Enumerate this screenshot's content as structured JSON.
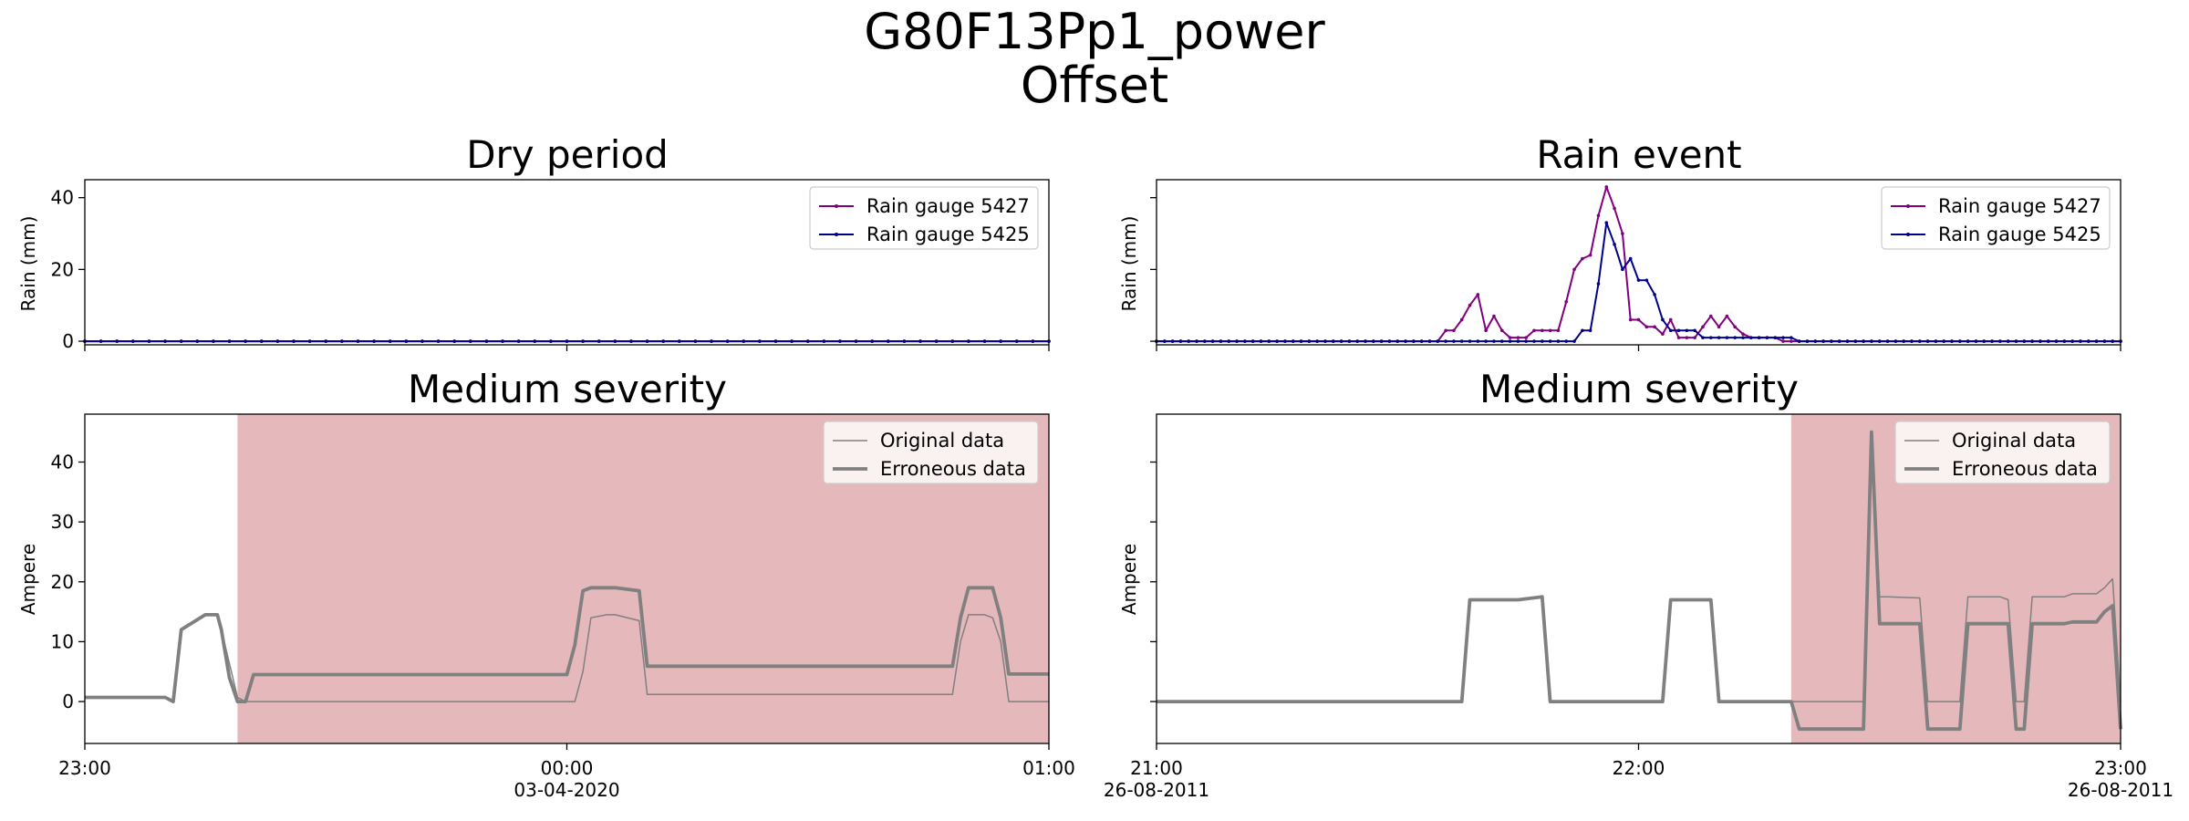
{
  "figure": {
    "title_line1": "G80F13Pp1_power",
    "title_line2": "Offset"
  },
  "panels": {
    "tl": {
      "title": "Dry period",
      "ylabel": "Rain (mm)"
    },
    "tr": {
      "title": "Rain event",
      "ylabel": "Rain (mm)"
    },
    "bl": {
      "title": "Medium severity",
      "ylabel": "Ampere"
    },
    "br": {
      "title": "Medium severity",
      "ylabel": "Ampere"
    }
  },
  "legends": {
    "rain": [
      "Rain gauge 5427",
      "Rain gauge 5425"
    ],
    "current": [
      "Original data",
      "Erroneous data"
    ]
  },
  "x_ticks": {
    "left": [
      {
        "line1": "23:00",
        "line2": ""
      },
      {
        "line1": "00:00",
        "line2": "03-04-2020"
      },
      {
        "line1": "01:00",
        "line2": ""
      }
    ],
    "right": [
      {
        "line1": "21:00",
        "line2": "26-08-2011"
      },
      {
        "line1": "22:00",
        "line2": ""
      },
      {
        "line1": "23:00",
        "line2": "26-08-2011"
      }
    ]
  },
  "colors": {
    "gauge_5427": "#800080",
    "gauge_5425": "#00008b",
    "current": "#808080",
    "error_span": "#e5b9bb",
    "axis": "#000000"
  },
  "chart_data": [
    {
      "id": "tl",
      "type": "line",
      "title": "Dry period",
      "ylabel": "Rain (mm)",
      "xlim_minutes": [
        0,
        120
      ],
      "ylim": [
        -1,
        45
      ],
      "yticks": [
        0,
        20,
        40
      ],
      "x_tick_labels": [
        "23:00",
        "00:00\n03-04-2020",
        "01:00"
      ],
      "grid": false,
      "legend": "top-right",
      "series": [
        {
          "name": "Rain gauge 5427",
          "x_step_minutes": 2,
          "constant_value": 0,
          "count": 61
        },
        {
          "name": "Rain gauge 5425",
          "x_step_minutes": 2,
          "constant_value": 0,
          "count": 61
        }
      ]
    },
    {
      "id": "tr",
      "type": "line",
      "title": "Rain event",
      "ylabel": "Rain (mm)",
      "xlim_minutes": [
        0,
        120
      ],
      "ylim": [
        -1,
        45
      ],
      "yticks": [
        0,
        20,
        40
      ],
      "x_tick_labels": [
        "21:00\n26-08-2011",
        "22:00",
        "23:00\n26-08-2011"
      ],
      "grid": false,
      "legend": "top-right",
      "series": [
        {
          "name": "Rain gauge 5427",
          "x_step_minutes": 1,
          "values": [
            0,
            0,
            0,
            0,
            0,
            0,
            0,
            0,
            0,
            0,
            0,
            0,
            0,
            0,
            0,
            0,
            0,
            0,
            0,
            0,
            0,
            0,
            0,
            0,
            0,
            0,
            0,
            0,
            0,
            0,
            0,
            0,
            0,
            0,
            0,
            0,
            3,
            3,
            6,
            10,
            13,
            3,
            7,
            3,
            1,
            1,
            1,
            3,
            3,
            3,
            3,
            11,
            20,
            23,
            24,
            35,
            43,
            37,
            30,
            6,
            6,
            4,
            4,
            2,
            6,
            1,
            1,
            1,
            4,
            7,
            4,
            7,
            4,
            2,
            1,
            1,
            1,
            1,
            0,
            0,
            0,
            0,
            0,
            0,
            0,
            0,
            0,
            0,
            0,
            0,
            0,
            0,
            0,
            0,
            0,
            0,
            0,
            0,
            0,
            0,
            0,
            0,
            0,
            0,
            0,
            0,
            0,
            0,
            0,
            0,
            0,
            0,
            0,
            0,
            0,
            0,
            0,
            0,
            0,
            0,
            0
          ]
        },
        {
          "name": "Rain gauge 5425",
          "x_step_minutes": 1,
          "values": [
            0,
            0,
            0,
            0,
            0,
            0,
            0,
            0,
            0,
            0,
            0,
            0,
            0,
            0,
            0,
            0,
            0,
            0,
            0,
            0,
            0,
            0,
            0,
            0,
            0,
            0,
            0,
            0,
            0,
            0,
            0,
            0,
            0,
            0,
            0,
            0,
            0,
            0,
            0,
            0,
            0,
            0,
            0,
            0,
            0,
            0,
            0,
            0,
            0,
            0,
            0,
            0,
            0,
            3,
            3,
            16,
            33,
            27,
            20,
            23,
            17,
            17,
            13,
            6,
            3,
            3,
            3,
            3,
            1,
            1,
            1,
            1,
            1,
            1,
            1,
            1,
            1,
            1,
            1,
            1,
            0,
            0,
            0,
            0,
            0,
            0,
            0,
            0,
            0,
            0,
            0,
            0,
            0,
            0,
            0,
            0,
            0,
            0,
            0,
            0,
            0,
            0,
            0,
            0,
            0,
            0,
            0,
            0,
            0,
            0,
            0,
            0,
            0,
            0,
            0,
            0,
            0,
            0,
            0,
            0,
            0
          ]
        }
      ]
    },
    {
      "id": "bl",
      "type": "line",
      "title": "Medium severity",
      "ylabel": "Ampere",
      "xlim_minutes": [
        0,
        120
      ],
      "ylim": [
        -7,
        48
      ],
      "yticks": [
        0,
        10,
        20,
        30,
        40
      ],
      "x_tick_labels": [
        "23:00",
        "00:00\n03-04-2020",
        "01:00"
      ],
      "grid": false,
      "legend": "top-right",
      "error_span_minutes": [
        19,
        120
      ],
      "series": [
        {
          "name": "Original data",
          "x": [
            0,
            9,
            10,
            11,
            12,
            15,
            16,
            16.5,
            17,
            19,
            20,
            60,
            61,
            62,
            63,
            65,
            66,
            69,
            70,
            108,
            109,
            110,
            112,
            113,
            114,
            115,
            120
          ],
          "y": [
            0.7,
            0.7,
            0.7,
            0,
            12,
            14.5,
            14.5,
            14.5,
            12,
            0.7,
            0,
            0,
            0,
            5,
            14,
            14.5,
            14.5,
            13.5,
            1.2,
            1.2,
            10,
            14.5,
            14.5,
            14,
            10,
            0,
            0
          ]
        },
        {
          "name": "Erroneous data",
          "x": [
            0,
            9,
            10,
            11,
            12,
            15,
            16,
            16.5,
            17,
            18,
            19,
            20,
            21,
            60,
            61,
            62,
            63,
            65,
            66,
            69,
            70,
            108,
            109,
            110,
            112,
            113,
            114,
            115,
            120
          ],
          "y": [
            0.7,
            0.7,
            0.7,
            0,
            12,
            14.5,
            14.5,
            14.5,
            12,
            4,
            0,
            0,
            4.5,
            4.5,
            9.5,
            18.5,
            19,
            19,
            19,
            18.5,
            5.9,
            5.9,
            14,
            19,
            19,
            19,
            14,
            4.6,
            4.6
          ]
        }
      ]
    },
    {
      "id": "br",
      "type": "line",
      "title": "Medium severity",
      "ylabel": "Ampere",
      "xlim_minutes": [
        0,
        120
      ],
      "ylim": [
        -7,
        48
      ],
      "yticks": [
        0,
        10,
        20,
        30,
        40
      ],
      "x_tick_labels": [
        "21:00\n26-08-2011",
        "22:00",
        "23:00\n26-08-2011"
      ],
      "grid": false,
      "legend": "top-right",
      "error_span_minutes": [
        79,
        120
      ],
      "series": [
        {
          "name": "Original data",
          "x": [
            0,
            38,
            39,
            43,
            44,
            45,
            48,
            49,
            50,
            63,
            64,
            65,
            67,
            69,
            70,
            71,
            79,
            80,
            88,
            89,
            90,
            91,
            95,
            96,
            97,
            100,
            101,
            105,
            106,
            107,
            108,
            109,
            110,
            112,
            113,
            114,
            115,
            116,
            117,
            118,
            119,
            120
          ],
          "y": [
            0,
            0,
            17,
            17,
            17,
            17,
            17.5,
            0,
            0,
            0,
            17,
            17,
            17,
            17,
            0,
            0,
            0,
            0,
            0,
            45,
            17.5,
            17.5,
            17.3,
            0,
            0,
            0,
            17.5,
            17.5,
            17,
            0,
            0,
            17.5,
            17.5,
            17.5,
            17.5,
            18,
            18,
            18,
            18,
            19,
            20.5,
            0
          ]
        },
        {
          "name": "Erroneous data",
          "x": [
            0,
            38,
            39,
            43,
            44,
            45,
            48,
            49,
            50,
            63,
            64,
            65,
            67,
            69,
            70,
            71,
            79,
            80,
            88,
            89,
            90,
            91,
            95,
            96,
            97,
            100,
            101,
            105,
            106,
            107,
            108,
            109,
            110,
            112,
            113,
            114,
            115,
            116,
            117,
            118,
            119,
            120
          ],
          "y": [
            0,
            0,
            17,
            17,
            17,
            17,
            17.5,
            0,
            0,
            0,
            17,
            17,
            17,
            17,
            0,
            0,
            0,
            -4.6,
            -4.6,
            45,
            13,
            13,
            13,
            -4.6,
            -4.6,
            -4.6,
            13,
            13,
            13,
            -4.6,
            -4.6,
            13,
            13,
            13,
            13,
            13.3,
            13.3,
            13.3,
            13.3,
            15,
            16,
            -4.6
          ]
        }
      ]
    }
  ]
}
